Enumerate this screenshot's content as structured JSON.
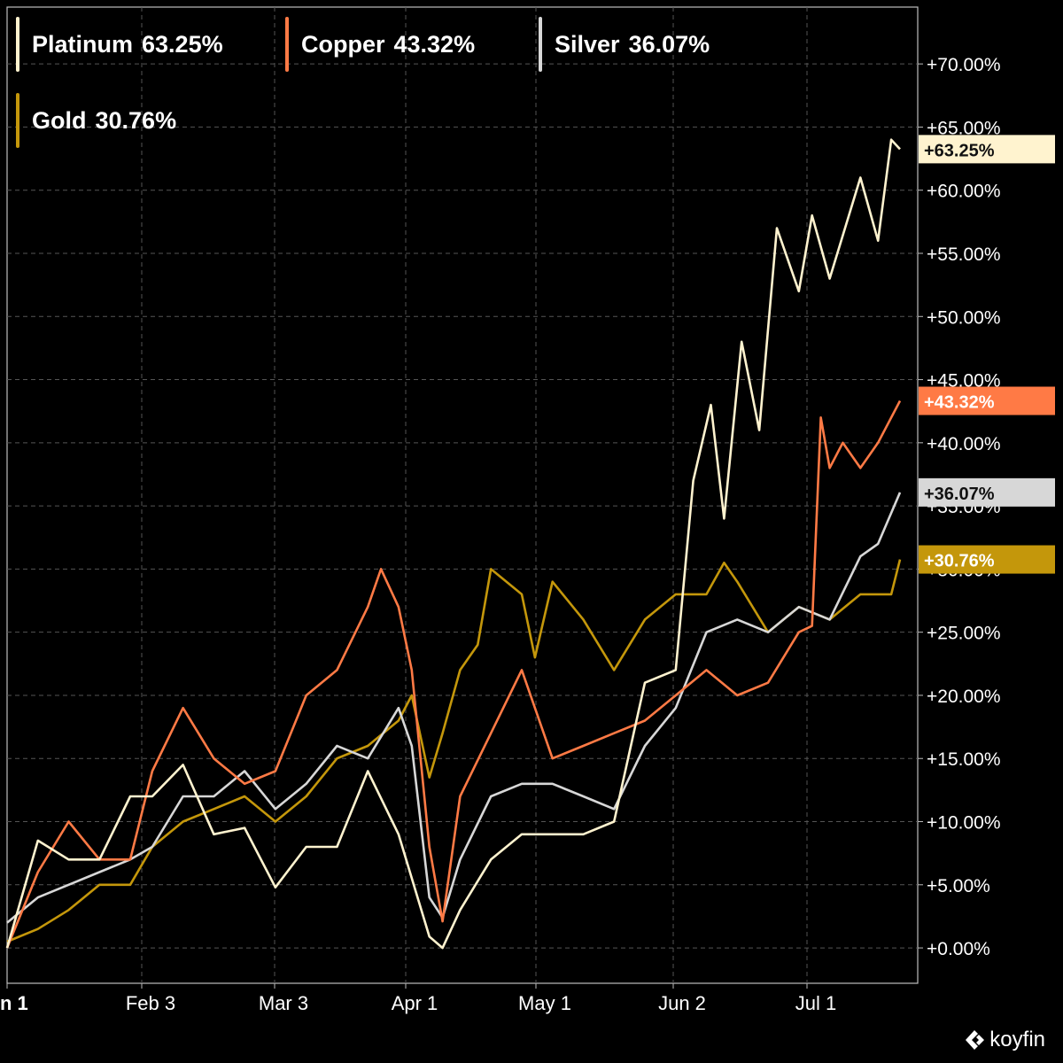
{
  "legend": [
    {
      "name": "Platinum",
      "value": "63.25%",
      "color": "#fff3cf"
    },
    {
      "name": "Copper",
      "value": "43.32%",
      "color": "#ff7a45"
    },
    {
      "name": "Silver",
      "value": "36.07%",
      "color": "#d7d7d7"
    },
    {
      "name": "Gold",
      "value": "30.76%",
      "color": "#c4970b"
    }
  ],
  "watermark": "koyfin",
  "chart_data": {
    "type": "line",
    "title": "",
    "xlabel": "",
    "ylabel": "",
    "x_ticks": [
      "n 1",
      "Feb 3",
      "Mar 3",
      "Apr 1",
      "May 1",
      "Jun 2",
      "Jul 1"
    ],
    "y_ticks": [
      "+0.00%",
      "+5.00%",
      "+10.00%",
      "+15.00%",
      "+20.00%",
      "+25.00%",
      "+30.00%",
      "+35.00%",
      "+40.00%",
      "+45.00%",
      "+50.00%",
      "+55.00%",
      "+60.00%",
      "+65.00%",
      "+70.00%"
    ],
    "ylim": [
      -2.8,
      74.5
    ],
    "x_range": [
      "Jan 1",
      "Jul 23"
    ],
    "grid": true,
    "legend_position": "top-left",
    "end_labels": [
      "+63.25%",
      "+43.32%",
      "+36.07%",
      "+30.76%"
    ],
    "series": [
      {
        "name": "Platinum",
        "color": "#fff3cf",
        "end_label": "+63.25%",
        "points": [
          [
            "01-01",
            0
          ],
          [
            "01-08",
            8.5
          ],
          [
            "01-15",
            7
          ],
          [
            "01-22",
            7
          ],
          [
            "01-29",
            12
          ],
          [
            "02-03",
            12
          ],
          [
            "02-10",
            14.5
          ],
          [
            "02-17",
            9
          ],
          [
            "02-24",
            9.5
          ],
          [
            "03-03",
            4.8
          ],
          [
            "03-10",
            8
          ],
          [
            "03-17",
            8
          ],
          [
            "03-24",
            14
          ],
          [
            "03-31",
            9
          ],
          [
            "04-07",
            0.9
          ],
          [
            "04-10",
            0
          ],
          [
            "04-14",
            3
          ],
          [
            "04-21",
            7
          ],
          [
            "04-28",
            9
          ],
          [
            "05-05",
            9
          ],
          [
            "05-12",
            9
          ],
          [
            "05-19",
            10
          ],
          [
            "05-26",
            21
          ],
          [
            "06-02",
            22
          ],
          [
            "06-06",
            37
          ],
          [
            "06-10",
            43
          ],
          [
            "06-13",
            34
          ],
          [
            "06-17",
            48
          ],
          [
            "06-21",
            41
          ],
          [
            "06-25",
            57
          ],
          [
            "06-30",
            52
          ],
          [
            "07-03",
            58
          ],
          [
            "07-07",
            53
          ],
          [
            "07-14",
            61
          ],
          [
            "07-18",
            56
          ],
          [
            "07-21",
            64
          ],
          [
            "07-23",
            63.25
          ]
        ]
      },
      {
        "name": "Copper",
        "color": "#ff7a45",
        "end_label": "+43.32%",
        "points": [
          [
            "01-01",
            0
          ],
          [
            "01-08",
            6
          ],
          [
            "01-15",
            10
          ],
          [
            "01-22",
            7
          ],
          [
            "01-29",
            7
          ],
          [
            "02-03",
            14
          ],
          [
            "02-10",
            19
          ],
          [
            "02-17",
            15
          ],
          [
            "02-24",
            13
          ],
          [
            "03-03",
            14
          ],
          [
            "03-10",
            20
          ],
          [
            "03-17",
            22
          ],
          [
            "03-24",
            27
          ],
          [
            "03-27",
            30
          ],
          [
            "03-31",
            27
          ],
          [
            "04-03",
            22
          ],
          [
            "04-07",
            8
          ],
          [
            "04-10",
            2.1
          ],
          [
            "04-14",
            12
          ],
          [
            "04-21",
            17
          ],
          [
            "04-28",
            22
          ],
          [
            "05-05",
            15
          ],
          [
            "05-12",
            16
          ],
          [
            "05-19",
            17
          ],
          [
            "05-26",
            18
          ],
          [
            "06-02",
            20
          ],
          [
            "06-09",
            22
          ],
          [
            "06-16",
            20
          ],
          [
            "06-23",
            21
          ],
          [
            "06-30",
            25
          ],
          [
            "07-03",
            25.5
          ],
          [
            "07-05",
            42
          ],
          [
            "07-07",
            38
          ],
          [
            "07-10",
            40
          ],
          [
            "07-14",
            38
          ],
          [
            "07-18",
            40
          ],
          [
            "07-23",
            43.32
          ]
        ]
      },
      {
        "name": "Silver",
        "color": "#d7d7d7",
        "end_label": "+36.07%",
        "points": [
          [
            "01-01",
            2
          ],
          [
            "01-08",
            4
          ],
          [
            "01-15",
            5
          ],
          [
            "01-22",
            6
          ],
          [
            "01-29",
            7
          ],
          [
            "02-03",
            8
          ],
          [
            "02-10",
            12
          ],
          [
            "02-17",
            12
          ],
          [
            "02-24",
            14
          ],
          [
            "03-03",
            11
          ],
          [
            "03-10",
            13
          ],
          [
            "03-17",
            16
          ],
          [
            "03-24",
            15
          ],
          [
            "03-31",
            19
          ],
          [
            "04-03",
            16
          ],
          [
            "04-07",
            4
          ],
          [
            "04-10",
            2.4
          ],
          [
            "04-14",
            7
          ],
          [
            "04-21",
            12
          ],
          [
            "04-28",
            13
          ],
          [
            "05-05",
            13
          ],
          [
            "05-12",
            12
          ],
          [
            "05-19",
            11
          ],
          [
            "05-26",
            16
          ],
          [
            "06-02",
            19
          ],
          [
            "06-09",
            25
          ],
          [
            "06-16",
            26
          ],
          [
            "06-23",
            25
          ],
          [
            "06-30",
            27
          ],
          [
            "07-07",
            26
          ],
          [
            "07-14",
            31
          ],
          [
            "07-18",
            32
          ],
          [
            "07-23",
            36.07
          ]
        ]
      },
      {
        "name": "Gold",
        "color": "#c4970b",
        "end_label": "+30.76%",
        "points": [
          [
            "01-01",
            0.5
          ],
          [
            "01-08",
            1.5
          ],
          [
            "01-15",
            3
          ],
          [
            "01-22",
            5
          ],
          [
            "01-29",
            5
          ],
          [
            "02-03",
            8
          ],
          [
            "02-10",
            10
          ],
          [
            "02-17",
            11
          ],
          [
            "02-24",
            12
          ],
          [
            "03-03",
            10
          ],
          [
            "03-10",
            12
          ],
          [
            "03-17",
            15
          ],
          [
            "03-24",
            16
          ],
          [
            "03-31",
            18
          ],
          [
            "04-03",
            20
          ],
          [
            "04-07",
            13.5
          ],
          [
            "04-10",
            17
          ],
          [
            "04-14",
            22
          ],
          [
            "04-18",
            24
          ],
          [
            "04-21",
            30
          ],
          [
            "04-28",
            28
          ],
          [
            "05-01",
            23
          ],
          [
            "05-05",
            29
          ],
          [
            "05-12",
            26
          ],
          [
            "05-19",
            22
          ],
          [
            "05-26",
            26
          ],
          [
            "06-02",
            28
          ],
          [
            "06-09",
            28
          ],
          [
            "06-13",
            30.5
          ],
          [
            "06-16",
            29
          ],
          [
            "06-23",
            25
          ],
          [
            "06-30",
            27
          ],
          [
            "07-07",
            26
          ],
          [
            "07-14",
            28
          ],
          [
            "07-21",
            28
          ],
          [
            "07-23",
            30.76
          ]
        ]
      }
    ]
  }
}
